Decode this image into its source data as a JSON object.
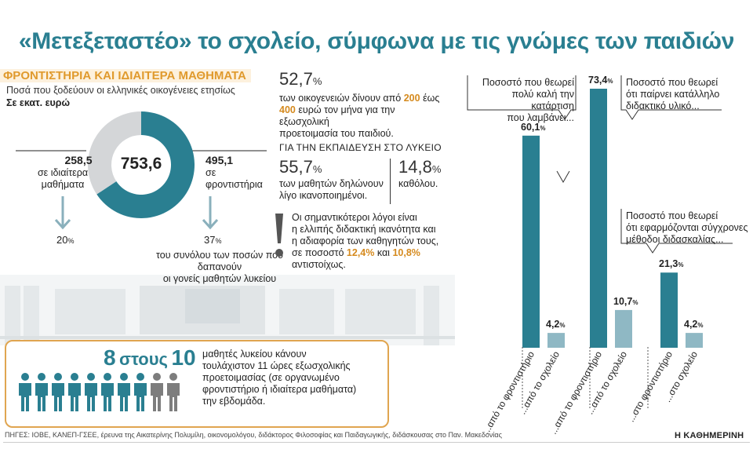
{
  "title": "«Μετεξεταστέο» το σχολείο, σύμφωνα με τις γνώμες των παιδιών",
  "tutoring": {
    "section_title": "ΦΡΟΝΤΙΣΤΗΡΙΑ ΚΑΙ ΙΔΙΑΙΤΕΡΑ ΜΑΘΗΜΑΤΑ",
    "subtitle": "Ποσά που ξοδεύουν οι ελληνικές οικογένειες ετησίως",
    "unit": "Σε εκατ. ευρώ",
    "total": "753,6",
    "left_value": "258,5",
    "left_label_1": "σε ιδιαίτερα",
    "left_label_2": "μαθήματα",
    "right_value": "495,1",
    "right_label_1": "σε",
    "right_label_2": "φροντιστήρια",
    "left_pct": "20",
    "right_pct": "37",
    "pct_sign": "%",
    "summary_1": "του συνόλου των ποσών που δαπανούν",
    "summary_2": "οι γονείς μαθητών λυκείου"
  },
  "stats": {
    "s1_value": "52,7",
    "s1_line1": "των οικογενειών δίνουν από",
    "s1_n1": "200",
    "s1_line1b": "έως",
    "s1_n2": "400",
    "s1_line2": "ευρώ τον μήνα για την εξωσχολική",
    "s1_line3": "προετοιμασία του παιδιού.",
    "lyceum_title": "ΓΙΑ ΤΗΝ ΕΚΠΑΙΔΕΥΣΗ ΣΤΟ ΛΥΚΕΙΟ",
    "s2_value": "55,7",
    "s2_line1": "των μαθητών δηλώνουν",
    "s2_line2": "λίγο ικανοποιημένοι.",
    "s3_value": "14,8",
    "s3_line1": "καθόλου.",
    "reasons_line1": "Οι σημαντικότεροι λόγοι είναι",
    "reasons_line2": "η ελλιπής διδακτική ικανότητα και",
    "reasons_line3": "η αδιαφορία των καθηγητών τους,",
    "reasons_line4a": "σε ποσοστό",
    "reasons_p1": "12,4%",
    "reasons_and": "και",
    "reasons_p2": "10,8%",
    "reasons_line5": "αντιστοίχως."
  },
  "callouts": {
    "c1_1": "Ποσοστό που θεωρεί",
    "c1_2": "πολύ καλή την κατάρτιση",
    "c1_3": "που λαμβάνει...",
    "c2_1": "Ποσοστό που θεωρεί",
    "c2_2": "ότι παίρνει κατάλληλο",
    "c2_3": "διδακτικό υλικό...",
    "c3_1": "Ποσοστό που θεωρεί",
    "c3_2": "ότι εφαρμόζονται σύγχρονες",
    "c3_3": "μέθοδοι διδασκαλίας..."
  },
  "chart_data": {
    "type": "bar",
    "unit": "%",
    "groups": [
      {
        "bars": [
          {
            "label": "...από το φροντιστήριο",
            "value": 60.1,
            "display": "60,1"
          },
          {
            "label": "...από το σχολείο",
            "value": 4.2,
            "display": "4,2"
          }
        ]
      },
      {
        "bars": [
          {
            "label": "...από το φροντιστήριο",
            "value": 73.4,
            "display": "73,4"
          },
          {
            "label": "...από το σχολείο",
            "value": 10.7,
            "display": "10,7"
          }
        ]
      },
      {
        "bars": [
          {
            "label": "...στο φροντιστήριο",
            "value": 21.3,
            "display": "21,3"
          },
          {
            "label": "...στο σχολείο",
            "value": 4.2,
            "display": "4,2"
          }
        ]
      }
    ],
    "colors": {
      "tutoring": "#2a7f91",
      "school": "#8fb8c4"
    }
  },
  "highlight": {
    "n": "8",
    "word": "στους",
    "d": "10",
    "line1": "μαθητές λυκείου κάνουν",
    "line2": "τουλάχιστον 11 ώρες εξωσχολικής",
    "line3": "προετοιμασίας (σε οργανωμένο",
    "line4": "φροντιστήριο ή ιδιαίτερα μαθήματα)",
    "line5": "την εβδομάδα.",
    "filled": 8,
    "total": 10
  },
  "sources": "ΠΗΓΕΣ: ΙΟΒΕ, ΚΑΝΕΠ-ΓΣΕΕ, έρευνα της Αικατερίνης Πολυμίλη, οικονομολόγου, διδάκτορος Φιλοσοφίας και Παιδαγωγικής, διδάσκουσας στο Παν. Μακεδονίας",
  "brand": "Η ΚΑΘΗΜΕΡΙΝΗ",
  "colors": {
    "teal": "#2a7f91",
    "light_teal": "#8fb8c4",
    "orange": "#e09a2d",
    "grey": "#d4d6d8",
    "person_grey": "#7d7d7d"
  }
}
